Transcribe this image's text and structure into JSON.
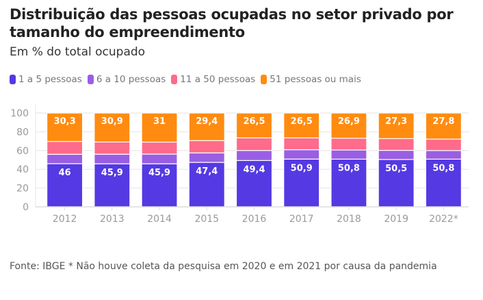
{
  "chart_data": {
    "type": "bar",
    "stacked": true,
    "title": "Distribuição das pessoas ocupadas no setor privado por tamanho do empreendimento",
    "subtitle": "Em % do total ocupado",
    "xlabel": "",
    "ylabel": "",
    "ylim": [
      0,
      100
    ],
    "yticks": [
      0,
      20,
      40,
      60,
      80,
      100
    ],
    "grid": true,
    "legend_position": "top-left",
    "categories": [
      "2012",
      "2013",
      "2014",
      "2015",
      "2016",
      "2017",
      "2018",
      "2019",
      "2022*"
    ],
    "series": [
      {
        "name": "1 a 5 pessoas",
        "color": "#5539e3",
        "values": [
          46,
          45.9,
          45.9,
          47.4,
          49.4,
          50.9,
          50.8,
          50.5,
          50.8
        ],
        "labels": [
          "46",
          "45,9",
          "45,9",
          "47,4",
          "49,4",
          "50,9",
          "50,8",
          "50,5",
          "50,8"
        ],
        "show_labels": true
      },
      {
        "name": "6 a 10 pessoas",
        "color": "#9a5ee3",
        "values": [
          10.0,
          10.2,
          10.3,
          10.1,
          10.7,
          10.0,
          9.8,
          9.7,
          9.2
        ],
        "show_labels": false
      },
      {
        "name": "11 a 50 pessoas",
        "color": "#ff6b8a",
        "values": [
          13.7,
          13.0,
          12.8,
          13.1,
          13.4,
          12.6,
          12.5,
          12.5,
          12.2
        ],
        "show_labels": false
      },
      {
        "name": "51 pessoas ou mais",
        "color": "#ff8c10",
        "values": [
          30.3,
          30.9,
          31,
          29.4,
          26.5,
          26.5,
          26.9,
          27.3,
          27.8
        ],
        "labels": [
          "30,3",
          "30,9",
          "31",
          "29,4",
          "26,5",
          "26,5",
          "26,9",
          "27,3",
          "27,8"
        ],
        "show_labels": true
      }
    ]
  },
  "header": {
    "title": "Distribuição das pessoas ocupadas no setor privado por tamanho do empreendimento",
    "subtitle": "Em % do total ocupado"
  },
  "legend": [
    {
      "label": "1 a 5 pessoas",
      "color": "#5539e3"
    },
    {
      "label": "6 a 10 pessoas",
      "color": "#9a5ee3"
    },
    {
      "label": "11 a 50 pessoas",
      "color": "#ff6b8a"
    },
    {
      "label": "51 pessoas ou mais",
      "color": "#ff8c10"
    }
  ],
  "footer": {
    "source": "Fonte: IBGE * Não houve coleta da pesquisa em 2020 e em 2021 por causa da pandemia"
  }
}
